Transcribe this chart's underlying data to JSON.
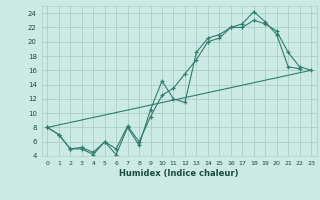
{
  "xlabel": "Humidex (Indice chaleur)",
  "ylabel": "",
  "bg_color": "#cceae4",
  "grid_color": "#aacfc8",
  "line_color": "#2e7d6e",
  "xlim": [
    -0.5,
    23.5
  ],
  "ylim": [
    4,
    25
  ],
  "xticks": [
    0,
    1,
    2,
    3,
    4,
    5,
    6,
    7,
    8,
    9,
    10,
    11,
    12,
    13,
    14,
    15,
    16,
    17,
    18,
    19,
    20,
    21,
    22,
    23
  ],
  "yticks": [
    4,
    6,
    8,
    10,
    12,
    14,
    16,
    18,
    20,
    22,
    24
  ],
  "series1_x": [
    0,
    1,
    2,
    3,
    4,
    5,
    6,
    7,
    8,
    9,
    10,
    11,
    12,
    13,
    14,
    15,
    16,
    17,
    18,
    19,
    20,
    21,
    22
  ],
  "series1_y": [
    8.0,
    7.0,
    5.0,
    5.0,
    4.2,
    6.0,
    4.2,
    8.0,
    5.5,
    10.5,
    14.5,
    12.0,
    11.5,
    18.5,
    20.5,
    21.0,
    22.0,
    22.5,
    24.2,
    22.8,
    21.0,
    16.5,
    16.2
  ],
  "series2_x": [
    0,
    1,
    2,
    3,
    4,
    5,
    6,
    7,
    8,
    9,
    10,
    11,
    12,
    13,
    14,
    15,
    16,
    17,
    18,
    19,
    20,
    21,
    22,
    23
  ],
  "series2_y": [
    8.0,
    7.0,
    5.0,
    5.2,
    4.5,
    6.0,
    5.0,
    8.2,
    6.0,
    9.5,
    12.5,
    13.5,
    15.5,
    17.5,
    20.0,
    20.5,
    22.0,
    22.0,
    23.0,
    22.5,
    21.5,
    18.5,
    16.5,
    16.0
  ],
  "series3_x": [
    0,
    23
  ],
  "series3_y": [
    8.0,
    16.0
  ]
}
